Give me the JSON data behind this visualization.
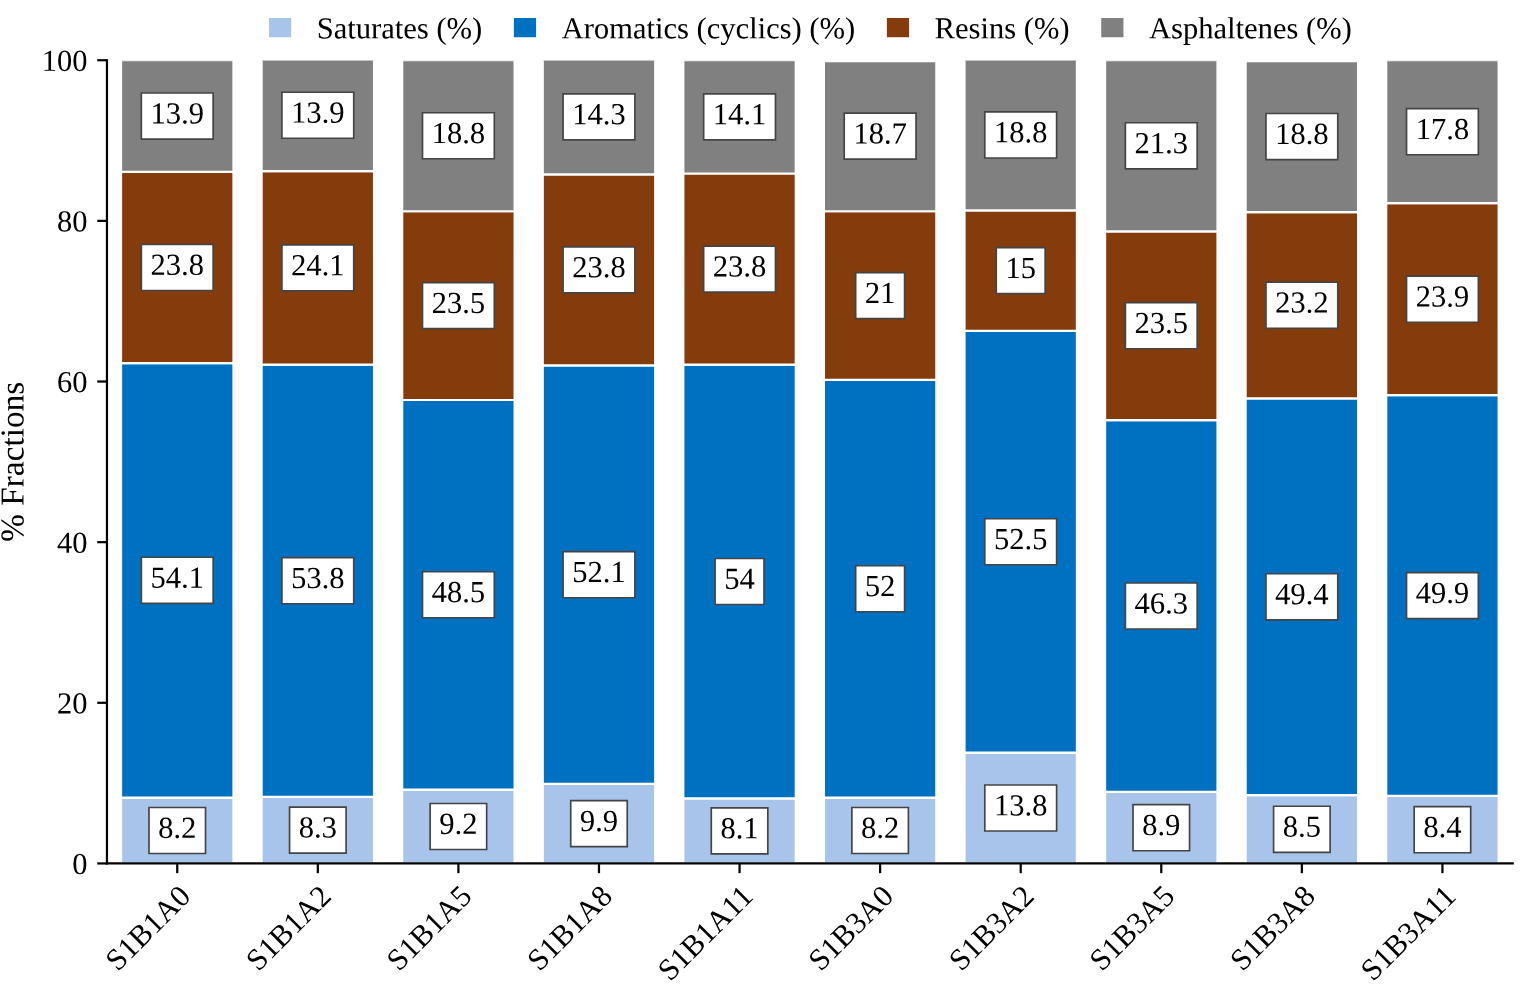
{
  "chart_data": {
    "type": "bar",
    "stacked": true,
    "ylabel": "% Fractions",
    "categories": [
      "S1B1A0",
      "S1B1A2",
      "S1B1A5",
      "S1B1A8",
      "S1B1A11",
      "S1B3A0",
      "S1B3A2",
      "S1B3A5",
      "S1B3A8",
      "S1B3A11"
    ],
    "series": [
      {
        "name": "Saturates (%)",
        "color": "#a9c4eb",
        "values": [
          8.2,
          8.3,
          9.2,
          9.9,
          8.1,
          8.2,
          13.8,
          8.9,
          8.5,
          8.4
        ]
      },
      {
        "name": "Aromatics (cyclics) (%)",
        "color": "#0070c0",
        "values": [
          54.1,
          53.8,
          48.5,
          52.1,
          54,
          52,
          52.5,
          46.3,
          49.4,
          49.9
        ]
      },
      {
        "name": "Resins (%)",
        "color": "#843c0c",
        "values": [
          23.8,
          24.1,
          23.5,
          23.8,
          23.8,
          21,
          15,
          23.5,
          23.2,
          23.9
        ]
      },
      {
        "name": "Asphaltenes (%)",
        "color": "#808080",
        "values": [
          13.9,
          13.9,
          18.8,
          14.3,
          14.1,
          18.7,
          18.8,
          21.3,
          18.8,
          17.8
        ]
      }
    ],
    "ylim": [
      0,
      100
    ],
    "yticks": [
      0,
      20,
      40,
      60,
      80,
      100
    ],
    "grid": false,
    "legend": "top",
    "data_labels": true
  }
}
